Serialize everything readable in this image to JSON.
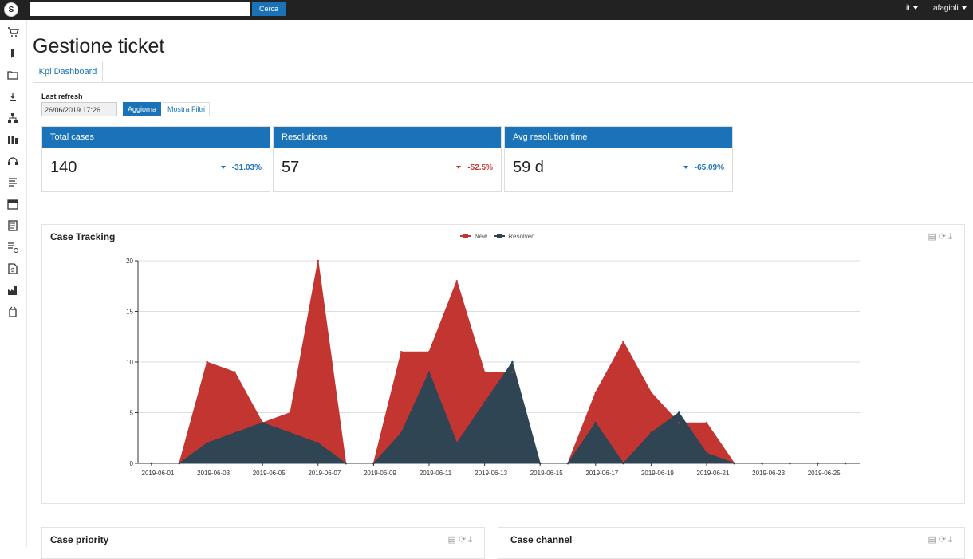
{
  "topbar": {
    "logo_icon": "logo-icon",
    "search_placeholder": "",
    "search_button": "Cerca",
    "language": "it",
    "user": "afagioli"
  },
  "sidebar": {
    "icons": [
      "cart-icon",
      "bookmark-icon",
      "folder-icon",
      "sort-icon",
      "org-chart-icon",
      "bar-chart-icon",
      "headset-icon",
      "list-icon",
      "calendar-icon",
      "invoice-icon",
      "list-clock-icon",
      "bill-icon",
      "factory-icon",
      "box-icon"
    ]
  },
  "page": {
    "title": "Gestione ticket",
    "tab": "Kpi Dashboard"
  },
  "refresh": {
    "label": "Last refresh",
    "value": "26/06/2019 17:26",
    "update_button": "Aggiorna",
    "filters_button": "Mostra Filtri"
  },
  "kpis": [
    {
      "title": "Total cases",
      "value": "140",
      "delta": "-31.03%",
      "delta_color": "#1a73b8"
    },
    {
      "title": "Resolutions",
      "value": "57",
      "delta": "-52.5%",
      "delta_color": "#c0392b"
    },
    {
      "title": "Avg resolution time",
      "value": "59 d",
      "delta": "-65.09%",
      "delta_color": "#1a73b8"
    }
  ],
  "colors": {
    "accent": "#1a73b8",
    "new_series": "#c23531",
    "resolved_series": "#2f4554"
  },
  "case_tracking": {
    "title": "Case Tracking",
    "tools": [
      "document-icon",
      "refresh-icon",
      "download-icon"
    ]
  },
  "chart_data": {
    "type": "area",
    "title": "Case Tracking",
    "x": [
      "2019-06-01",
      "2019-06-02",
      "2019-06-03",
      "2019-06-04",
      "2019-06-05",
      "2019-06-06",
      "2019-06-07",
      "2019-06-08",
      "2019-06-09",
      "2019-06-10",
      "2019-06-11",
      "2019-06-12",
      "2019-06-13",
      "2019-06-14",
      "2019-06-15",
      "2019-06-16",
      "2019-06-17",
      "2019-06-18",
      "2019-06-19",
      "2019-06-20",
      "2019-06-21",
      "2019-06-22",
      "2019-06-23",
      "2019-06-24",
      "2019-06-25",
      "2019-06-26"
    ],
    "x_tick_labels": [
      "2019-06-01",
      "2019-06-03",
      "2019-06-05",
      "2019-06-07",
      "2019-06-09",
      "2019-06-11",
      "2019-06-13",
      "2019-06-15",
      "2019-06-17",
      "2019-06-19",
      "2019-06-21",
      "2019-06-23",
      "2019-06-25"
    ],
    "series": [
      {
        "name": "New",
        "values": [
          0,
          0,
          10,
          9,
          4,
          5,
          20,
          0,
          0,
          11,
          11,
          18,
          9,
          9,
          0,
          0,
          7,
          12,
          7,
          4,
          4,
          0,
          0,
          0,
          0,
          0
        ]
      },
      {
        "name": "Resolved",
        "values": [
          0,
          0,
          2,
          3,
          4,
          3,
          2,
          0,
          0,
          3,
          9,
          2,
          6,
          10,
          0,
          0,
          4,
          0,
          3,
          5,
          1,
          0,
          0,
          0,
          0,
          0
        ]
      }
    ],
    "ylim": [
      0,
      20
    ],
    "y_ticks": [
      0,
      5,
      10,
      15,
      20
    ],
    "grid": true,
    "legend": "top-center"
  },
  "bottom_panels": [
    {
      "title": "Case priority",
      "tools": [
        "document-icon",
        "refresh-icon",
        "download-icon"
      ]
    },
    {
      "title": "Case channel",
      "tools": [
        "document-icon",
        "refresh-icon",
        "download-icon"
      ]
    }
  ]
}
